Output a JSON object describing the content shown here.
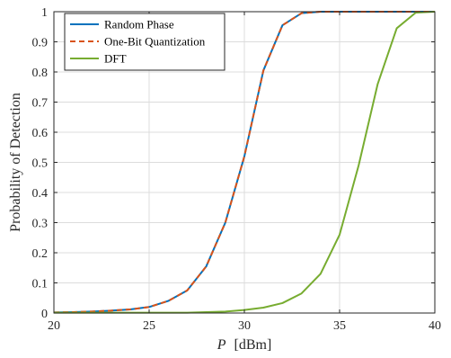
{
  "chart_data": {
    "type": "line",
    "xlabel_italic": "P",
    "xlabel_unit": "[dBm]",
    "ylabel": "Probability of Detection",
    "xlim": [
      20,
      40
    ],
    "ylim": [
      0,
      1
    ],
    "xticks": [
      20,
      25,
      30,
      35,
      40
    ],
    "yticks": [
      0,
      0.1,
      0.2,
      0.3,
      0.4,
      0.5,
      0.6,
      0.7,
      0.8,
      0.9,
      1
    ],
    "grid": true,
    "legend_position": "top-left",
    "x": [
      20,
      21,
      22,
      23,
      24,
      25,
      26,
      27,
      28,
      29,
      30,
      31,
      32,
      33,
      34,
      35,
      36,
      37,
      38,
      39,
      40
    ],
    "series": [
      {
        "name": "Random Phase",
        "color": "#0072BD",
        "dash": "solid",
        "values": [
          0.002,
          0.003,
          0.005,
          0.008,
          0.012,
          0.02,
          0.04,
          0.075,
          0.155,
          0.3,
          0.52,
          0.805,
          0.955,
          0.995,
          1,
          1,
          1,
          1,
          1,
          1,
          1
        ]
      },
      {
        "name": "One-Bit Quantization",
        "color": "#D95319",
        "dash": "dashed",
        "values": [
          0.002,
          0.003,
          0.005,
          0.008,
          0.012,
          0.02,
          0.04,
          0.075,
          0.155,
          0.3,
          0.52,
          0.805,
          0.955,
          0.995,
          1,
          1,
          1,
          1,
          1,
          1,
          1
        ]
      },
      {
        "name": "DFT",
        "color": "#77AC30",
        "dash": "solid",
        "values": [
          0.001,
          0.001,
          0.001,
          0.001,
          0.001,
          0.001,
          0.001,
          0.001,
          0.003,
          0.005,
          0.01,
          0.018,
          0.033,
          0.065,
          0.13,
          0.26,
          0.49,
          0.76,
          0.945,
          0.997,
          1
        ]
      }
    ]
  }
}
